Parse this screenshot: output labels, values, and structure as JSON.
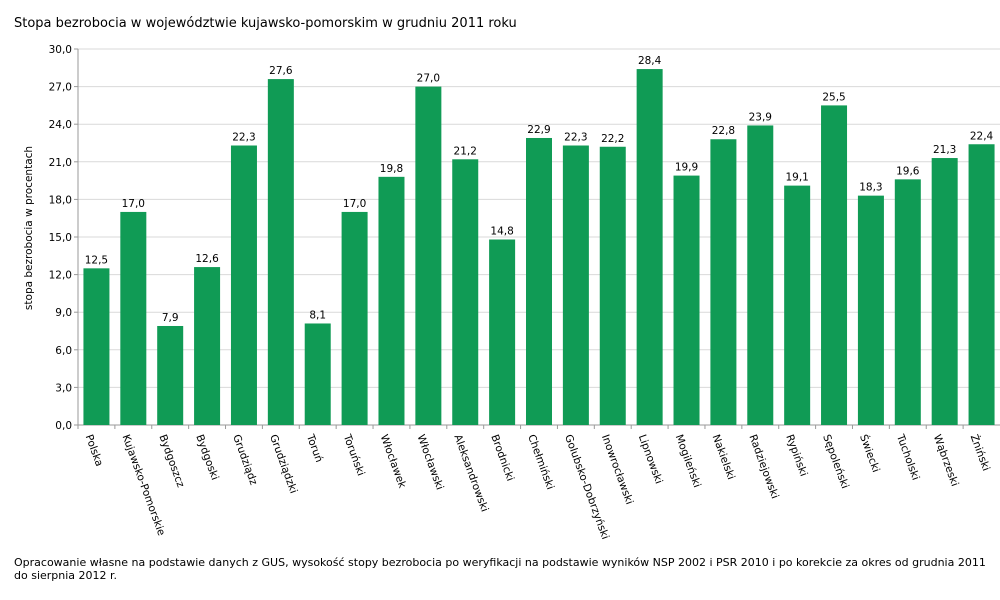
{
  "title": "Stopa bezrobocia w województwie kujawsko-pomorskim w grudniu 2011 roku",
  "footnote": "Opracowanie własne na podstawie danych z GUS, wysokość stopy bezrobocia po weryfikacji na podstawie wyników NSP 2002 i PSR 2010 i po korekcie za okres od grudnia 2011 do sierpnia 2012 r.",
  "chart_data": {
    "type": "bar",
    "title": "Stopa bezrobocia w województwie kujawsko-pomorskim w grudniu 2011 roku",
    "xlabel": "",
    "ylabel": "stopa bezrobocia w procentach",
    "ylim": [
      0,
      30
    ],
    "yticks": [
      0,
      3,
      6,
      9,
      12,
      15,
      18,
      21,
      24,
      27,
      30
    ],
    "ytick_labels": [
      "0,0",
      "3,0",
      "6,0",
      "9,0",
      "12,0",
      "15,0",
      "18,0",
      "21,0",
      "24,0",
      "27,0",
      "30,0"
    ],
    "grid": true,
    "legend": "none",
    "bar_color": "#109b55",
    "categories": [
      "Polska",
      "Kujawsko-Pomorskie",
      "Bydgoszcz",
      "Bydgoski",
      "Grudziądz",
      "Grudziądzki",
      "Toruń",
      "Toruński",
      "Włocławek",
      "Włocławski",
      "Aleksandrowski",
      "Brodnicki",
      "Chełmiński",
      "Golubsko-Dobrzyński",
      "Inowrocławski",
      "Lipnowski",
      "Mogileński",
      "Nakielski",
      "Radziejowski",
      "Rypiński",
      "Sępoleński",
      "Świecki",
      "Tucholski",
      "Wąbrzeski",
      "Żniński"
    ],
    "values": [
      12.5,
      17.0,
      7.9,
      12.6,
      22.3,
      27.6,
      8.1,
      17.0,
      19.8,
      27.0,
      21.2,
      14.8,
      22.9,
      22.3,
      22.2,
      28.4,
      19.9,
      22.8,
      23.9,
      19.1,
      25.5,
      18.3,
      19.6,
      21.3,
      22.4
    ],
    "value_labels": [
      "12,5",
      "17,0",
      "7,9",
      "12,6",
      "22,3",
      "27,6",
      "8,1",
      "17,0",
      "19,8",
      "27,0",
      "21,2",
      "14,8",
      "22,9",
      "22,3",
      "22,2",
      "28,4",
      "19,9",
      "22,8",
      "23,9",
      "19,1",
      "25,5",
      "18,3",
      "19,6",
      "21,3",
      "22,4"
    ]
  }
}
